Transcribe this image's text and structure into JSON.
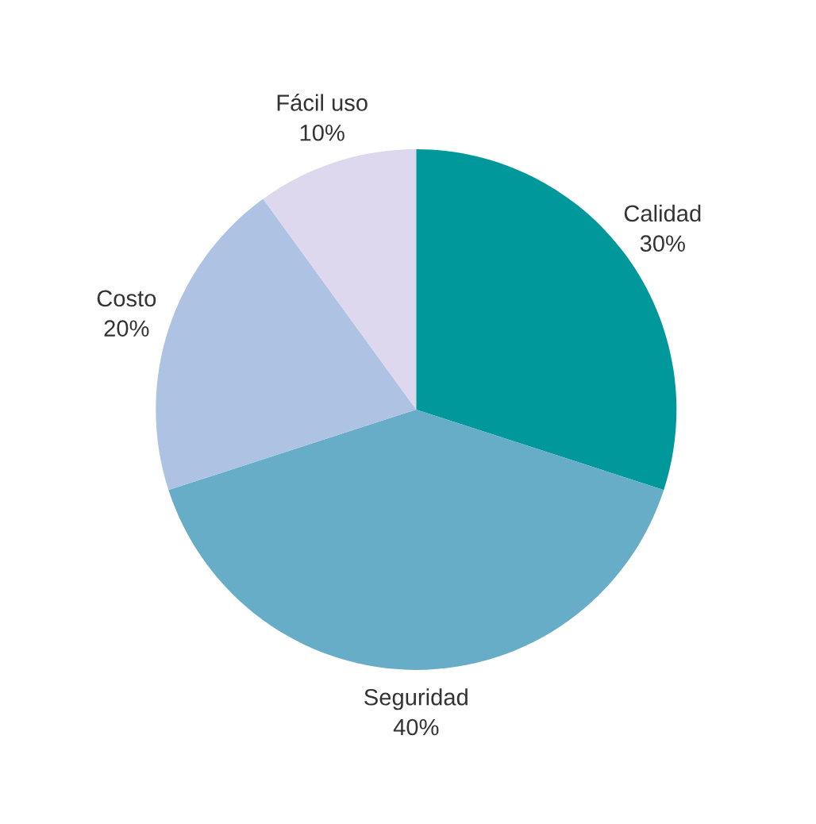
{
  "chart_data": {
    "type": "pie",
    "categories": [
      "Calidad",
      "Seguridad",
      "Costo",
      "Fácil uso"
    ],
    "values": [
      30,
      40,
      20,
      10
    ],
    "value_labels": [
      "30%",
      "40%",
      "20%",
      "10%"
    ],
    "colors": [
      "#00989a",
      "#67adc8",
      "#aec2e4",
      "#ddd8ee"
    ],
    "legend": false
  }
}
